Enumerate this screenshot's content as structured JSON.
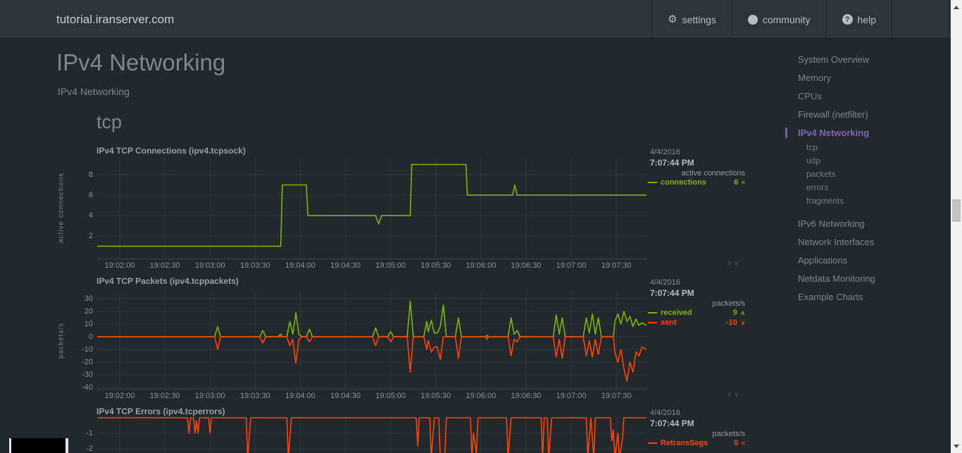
{
  "navbar": {
    "brand": "tutorial.iranserver.com",
    "buttons": [
      {
        "label": "settings",
        "icon": "gear-icon",
        "glyph": "⚙"
      },
      {
        "label": "community",
        "icon": "github-icon",
        "glyph": ""
      },
      {
        "label": "help",
        "icon": "help-icon",
        "glyph": "?"
      }
    ]
  },
  "page": {
    "title": "IPv4 Networking",
    "subtitle": "IPv4 Networking",
    "section_heading": "tcp"
  },
  "sidebar": {
    "items": [
      {
        "label": "System Overview",
        "active": false,
        "sub": false
      },
      {
        "label": "Memory",
        "active": false,
        "sub": false
      },
      {
        "label": "CPUs",
        "active": false,
        "sub": false
      },
      {
        "label": "Firewall (netfilter)",
        "active": false,
        "sub": false
      },
      {
        "label": "IPv4 Networking",
        "active": true,
        "sub": false
      },
      {
        "label": "tcp",
        "active": false,
        "sub": true
      },
      {
        "label": "udp",
        "active": false,
        "sub": true
      },
      {
        "label": "packets",
        "active": false,
        "sub": true
      },
      {
        "label": "errors",
        "active": false,
        "sub": true
      },
      {
        "label": "fragments",
        "active": false,
        "sub": true
      },
      {
        "label": "IPv6 Networking",
        "active": false,
        "sub": false
      },
      {
        "label": "Network Interfaces",
        "active": false,
        "sub": false
      },
      {
        "label": "Applications",
        "active": false,
        "sub": false
      },
      {
        "label": "Netdata Monitoring",
        "active": false,
        "sub": false
      },
      {
        "label": "Example Charts",
        "active": false,
        "sub": false
      }
    ]
  },
  "misc": {
    "resize_up": "∧",
    "resize_down": "∨"
  },
  "colors": {
    "background": "#22282c",
    "navbar": "#2e353a",
    "green": "#7cb500",
    "red": "#ff4400",
    "purple": "#8465b0",
    "grid": "#2f363b",
    "scroll_track": "#f1f1f1",
    "scroll_thumb": "#c2c2c2"
  },
  "chart_data": [
    {
      "type": "line",
      "title": "IPv4 TCP Connections (ipv4.tcpsock)",
      "date": "4/4/2016",
      "time": "7:07:44 PM",
      "units": "active connections",
      "ylabel": "active connections",
      "x_tick_t": [
        15,
        45,
        75,
        105,
        135,
        165,
        195,
        225,
        255,
        285,
        315,
        345
      ],
      "x_tick_labels": [
        "19:02:00",
        "19:02:30",
        "19:03:00",
        "19:03:30",
        "19:04:00",
        "19:04:30",
        "19:05:00",
        "19:05:30",
        "19:06:00",
        "19:06:30",
        "19:07:00",
        "19:07:30"
      ],
      "x_domain": [
        0,
        365
      ],
      "y_ticks": [
        8,
        6,
        4,
        2
      ],
      "y_domain": [
        -0.28,
        9.79
      ],
      "series": [
        {
          "name": "connections",
          "color": "#7cb500",
          "value": "6",
          "trend": "<",
          "points": [
            [
              0,
              1
            ],
            [
              122,
              1
            ],
            [
              123,
              7
            ],
            [
              139,
              7
            ],
            [
              140,
              4
            ],
            [
              185,
              4
            ],
            [
              187,
              3.2
            ],
            [
              189,
              4
            ],
            [
              208,
              4
            ],
            [
              209,
              9
            ],
            [
              245,
              9
            ],
            [
              246,
              6
            ],
            [
              276,
              6
            ],
            [
              277.5,
              7
            ],
            [
              279,
              6
            ],
            [
              365,
              6
            ]
          ]
        }
      ]
    },
    {
      "type": "line",
      "title": "IPv4 TCP Packets (ipv4.tcppackets)",
      "date": "4/4/2016",
      "time": "7:07:44 PM",
      "units": "packets/s",
      "ylabel": "packets/s",
      "x_tick_t": [
        15,
        45,
        75,
        105,
        135,
        165,
        195,
        225,
        255,
        285,
        315,
        345
      ],
      "x_tick_labels": [
        "19:02:00",
        "19:02:30",
        "19:03:00",
        "19:03:30",
        "19:04:00",
        "19:04:30",
        "19:05:00",
        "19:05:30",
        "19:06:00",
        "19:06:30",
        "19:07:00",
        "19:07:30"
      ],
      "x_domain": [
        0,
        365
      ],
      "y_ticks": [
        30,
        20,
        10,
        0,
        -10,
        -20,
        -30,
        -40
      ],
      "y_domain": [
        -41.7,
        36.1
      ],
      "series": [
        {
          "name": "received",
          "color": "#7cb500",
          "value": "9",
          "trend": "∧",
          "points": [
            [
              0,
              0
            ],
            [
              78,
              0
            ],
            [
              80,
              8
            ],
            [
              82,
              0
            ],
            [
              108,
              0
            ],
            [
              110,
              5
            ],
            [
              112,
              0
            ],
            [
              120,
              0
            ],
            [
              122,
              2
            ],
            [
              123,
              0
            ],
            [
              126,
              0
            ],
            [
              128,
              12
            ],
            [
              130,
              2
            ],
            [
              132,
              19
            ],
            [
              134,
              2
            ],
            [
              136,
              0
            ],
            [
              139,
              0
            ],
            [
              141,
              6
            ],
            [
              143,
              0
            ],
            [
              183,
              0
            ],
            [
              185,
              7
            ],
            [
              187,
              0
            ],
            [
              193,
              0
            ],
            [
              195,
              4
            ],
            [
              197,
              0
            ],
            [
              206,
              0
            ],
            [
              208,
              28
            ],
            [
              210,
              0
            ],
            [
              217,
              0
            ],
            [
              219,
              12
            ],
            [
              220,
              4
            ],
            [
              222,
              13
            ],
            [
              224,
              3
            ],
            [
              226,
              3
            ],
            [
              228,
              8
            ],
            [
              230,
              25
            ],
            [
              232,
              0
            ],
            [
              238,
              0
            ],
            [
              240,
              15
            ],
            [
              242,
              0
            ],
            [
              258,
              0
            ],
            [
              259,
              1
            ],
            [
              260,
              0
            ],
            [
              273,
              0
            ],
            [
              275,
              15
            ],
            [
              277,
              2
            ],
            [
              279,
              5
            ],
            [
              281,
              0
            ],
            [
              303,
              0
            ],
            [
              305,
              17
            ],
            [
              307,
              2
            ],
            [
              309,
              15
            ],
            [
              311,
              0
            ],
            [
              323,
              0
            ],
            [
              325,
              15
            ],
            [
              327,
              3
            ],
            [
              329,
              18
            ],
            [
              331,
              2
            ],
            [
              333,
              15
            ],
            [
              335,
              0
            ],
            [
              343,
              0
            ],
            [
              344,
              12
            ],
            [
              346,
              18
            ],
            [
              348,
              10
            ],
            [
              350,
              20
            ],
            [
              352,
              12
            ],
            [
              354,
              16
            ],
            [
              356,
              8
            ],
            [
              358,
              14
            ],
            [
              360,
              9
            ],
            [
              362,
              11
            ],
            [
              365,
              9
            ]
          ]
        },
        {
          "name": "sent",
          "color": "#ff4400",
          "value": "-10",
          "trend": "∨",
          "points": [
            [
              0,
              0
            ],
            [
              78,
              0
            ],
            [
              80,
              -10
            ],
            [
              82,
              0
            ],
            [
              108,
              0
            ],
            [
              110,
              -5
            ],
            [
              112,
              0
            ],
            [
              126,
              0
            ],
            [
              128,
              -7
            ],
            [
              130,
              -2
            ],
            [
              132,
              -21
            ],
            [
              134,
              -2
            ],
            [
              136,
              0
            ],
            [
              139,
              0
            ],
            [
              141,
              -4
            ],
            [
              143,
              0
            ],
            [
              183,
              0
            ],
            [
              185,
              -7
            ],
            [
              187,
              0
            ],
            [
              193,
              0
            ],
            [
              195,
              -4
            ],
            [
              197,
              0
            ],
            [
              206,
              0
            ],
            [
              208,
              -28
            ],
            [
              210,
              0
            ],
            [
              217,
              0
            ],
            [
              219,
              -10
            ],
            [
              220,
              -3
            ],
            [
              222,
              -12
            ],
            [
              224,
              -8
            ],
            [
              226,
              -8
            ],
            [
              228,
              -18
            ],
            [
              230,
              0
            ],
            [
              238,
              0
            ],
            [
              240,
              -17
            ],
            [
              242,
              0
            ],
            [
              258,
              0
            ],
            [
              259,
              -2
            ],
            [
              260,
              0
            ],
            [
              273,
              0
            ],
            [
              275,
              -15
            ],
            [
              277,
              -2
            ],
            [
              279,
              -4
            ],
            [
              281,
              0
            ],
            [
              303,
              0
            ],
            [
              305,
              -16
            ],
            [
              307,
              -2
            ],
            [
              309,
              -17
            ],
            [
              311,
              0
            ],
            [
              323,
              0
            ],
            [
              325,
              -15
            ],
            [
              327,
              -3
            ],
            [
              329,
              -16
            ],
            [
              331,
              -2
            ],
            [
              333,
              -14
            ],
            [
              335,
              0
            ],
            [
              343,
              0
            ],
            [
              344,
              -12
            ],
            [
              346,
              -20
            ],
            [
              348,
              -10
            ],
            [
              350,
              -25
            ],
            [
              352,
              -35
            ],
            [
              354,
              -20
            ],
            [
              356,
              -28
            ],
            [
              358,
              -12
            ],
            [
              360,
              -15
            ],
            [
              362,
              -8
            ],
            [
              365,
              -10
            ]
          ]
        }
      ]
    },
    {
      "type": "line",
      "title": "IPv4 TCP Errors (ipv4.tcperrors)",
      "date": "4/4/2016",
      "time": "7:07:44 PM",
      "units": "packets/s",
      "ylabel": "",
      "x_tick_t": [
        15,
        45,
        75,
        105,
        135,
        165,
        195,
        225,
        255,
        285,
        315,
        345
      ],
      "x_tick_labels": [],
      "x_domain": [
        0,
        365
      ],
      "y_ticks": [
        -1,
        -2
      ],
      "y_domain": [
        -2.273,
        0.136
      ],
      "series": [
        {
          "name": "RetransSegs",
          "color": "#ff4400",
          "value": "0",
          "trend": "<",
          "points": [
            [
              0,
              0
            ],
            [
              60,
              0
            ],
            [
              61,
              -1
            ],
            [
              62,
              0
            ],
            [
              64,
              0
            ],
            [
              65,
              -1
            ],
            [
              66,
              -0.2
            ],
            [
              67,
              -1
            ],
            [
              68,
              0
            ],
            [
              74,
              0
            ],
            [
              75,
              -1
            ],
            [
              76,
              0
            ],
            [
              99,
              0
            ],
            [
              100,
              -2.6
            ],
            [
              102,
              0
            ],
            [
              126,
              0
            ],
            [
              127,
              -2.6
            ],
            [
              129,
              0
            ],
            [
              212,
              0
            ],
            [
              213,
              -1.8
            ],
            [
              214,
              0
            ],
            [
              221,
              0
            ],
            [
              222,
              -2.6
            ],
            [
              224,
              0
            ],
            [
              227,
              0
            ],
            [
              228,
              -2.6
            ],
            [
              231,
              -2.6
            ],
            [
              232,
              0
            ],
            [
              248,
              0
            ],
            [
              249,
              -2.6
            ],
            [
              250,
              -1
            ],
            [
              252,
              -2.3
            ],
            [
              253,
              0
            ],
            [
              272,
              0
            ],
            [
              273,
              -2.6
            ],
            [
              275,
              0
            ],
            [
              295,
              0
            ],
            [
              296,
              -2.6
            ],
            [
              297,
              0
            ],
            [
              299,
              0
            ],
            [
              300,
              -2.6
            ],
            [
              302,
              0
            ],
            [
              325,
              0
            ],
            [
              326,
              -2.6
            ],
            [
              328,
              0
            ],
            [
              330,
              -2.6
            ],
            [
              331,
              0
            ],
            [
              341,
              0
            ],
            [
              342,
              -1.5
            ],
            [
              343,
              -0.8
            ],
            [
              344,
              -2.6
            ],
            [
              346,
              -1
            ],
            [
              347,
              -2.6
            ],
            [
              349,
              -1.4
            ],
            [
              350,
              0
            ],
            [
              365,
              0
            ]
          ]
        }
      ]
    }
  ]
}
